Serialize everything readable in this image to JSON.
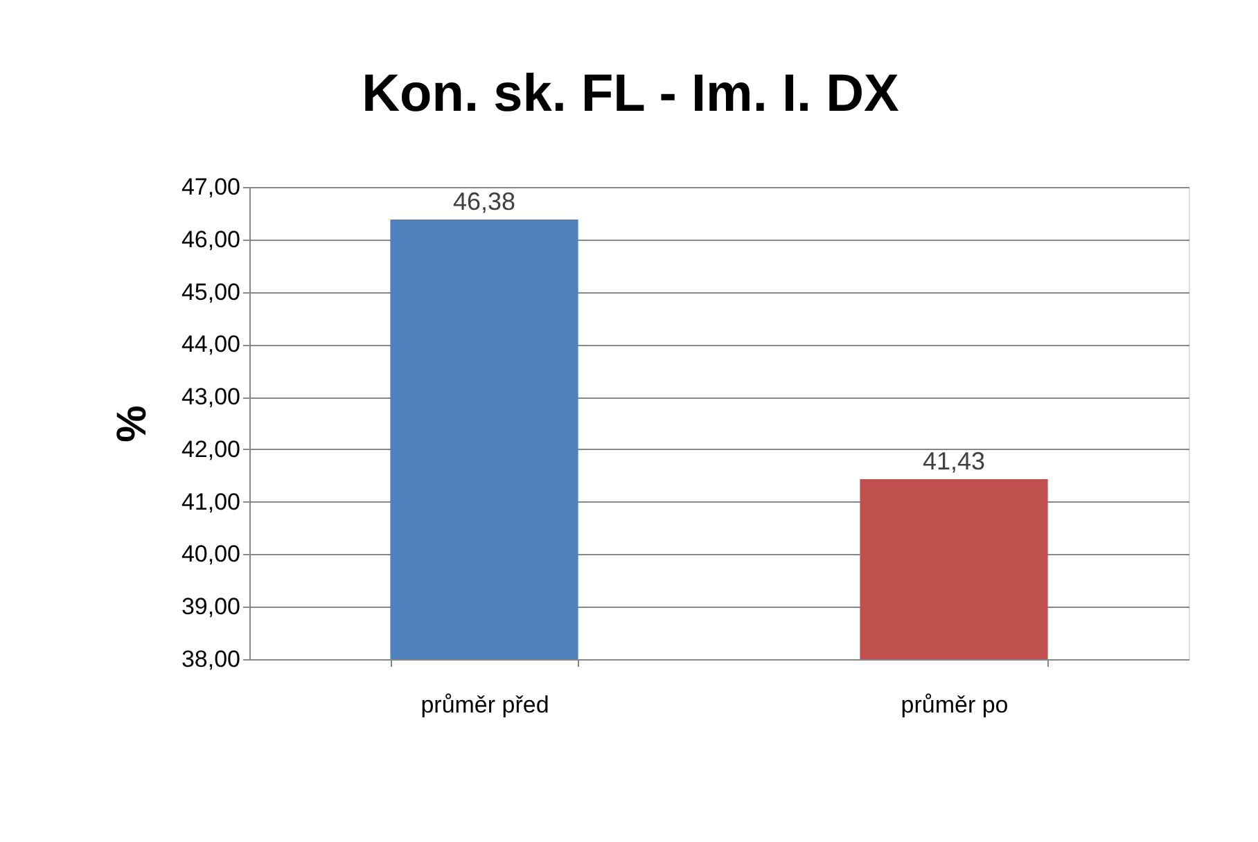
{
  "chart_data": {
    "type": "bar",
    "title": "Kon. sk. FL - Im. I. DX",
    "ylabel": "%",
    "categories": [
      "průměr před",
      "průměr po"
    ],
    "values": [
      46.38,
      41.43
    ],
    "colors": [
      "#4f81bd",
      "#c0504d"
    ],
    "value_labels": [
      "46,38",
      "41,43"
    ],
    "ylim": [
      38,
      47
    ],
    "yticks": [
      {
        "value": 38,
        "label": "38,00"
      },
      {
        "value": 39,
        "label": "39,00"
      },
      {
        "value": 40,
        "label": "40,00"
      },
      {
        "value": 41,
        "label": "41,00"
      },
      {
        "value": 42,
        "label": "42,00"
      },
      {
        "value": 43,
        "label": "43,00"
      },
      {
        "value": 44,
        "label": "44,00"
      },
      {
        "value": 45,
        "label": "45,00"
      },
      {
        "value": 46,
        "label": "46,00"
      },
      {
        "value": 47,
        "label": "47,00"
      }
    ],
    "grid": "y"
  }
}
